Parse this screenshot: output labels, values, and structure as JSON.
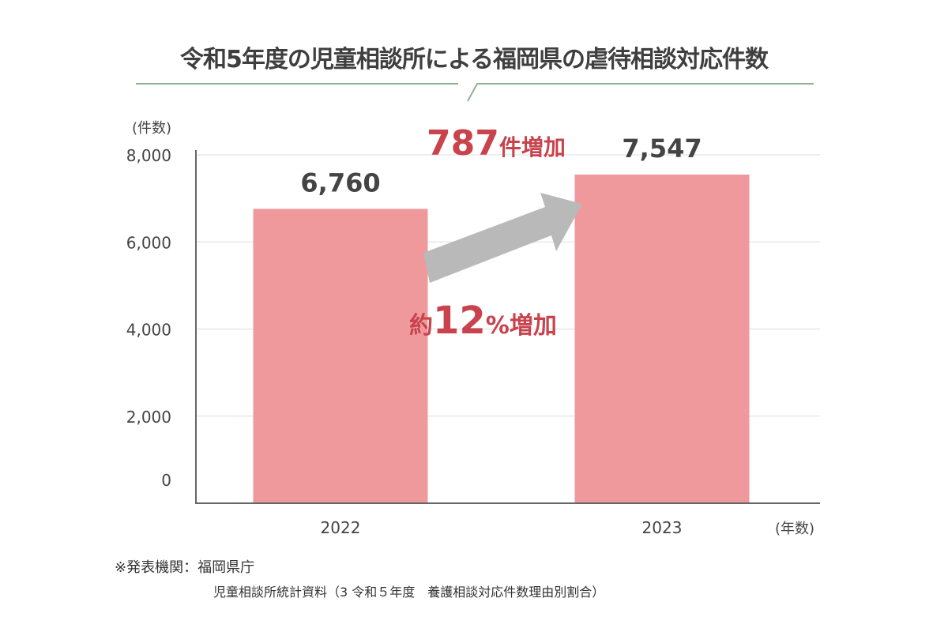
{
  "chart_data": {
    "type": "bar",
    "title": "令和5年度の児童相談所による福岡県の虐待相談対応件数",
    "categories": [
      "2022",
      "2023"
    ],
    "values": [
      6760,
      7547
    ],
    "value_labels": [
      "6,760",
      "7,547"
    ],
    "ylabel": "(件数)",
    "xlabel": "(年数)",
    "ylim": [
      0,
      8000
    ],
    "yticks": [
      0,
      2000,
      4000,
      6000,
      8000
    ],
    "ytick_labels": [
      "0",
      "2,000",
      "4,000",
      "6,000",
      "8,000"
    ],
    "grid": true,
    "annotations": {
      "increase_count_num": "787",
      "increase_count_suffix": "件増加",
      "increase_pct_prefix": "約",
      "increase_pct_num": "12",
      "increase_pct_suffix": "%増加"
    },
    "colors": {
      "bar": "#f0999c",
      "accent": "#c8434c",
      "arrow": "#b9b9b9",
      "title_line": "#8fb38f",
      "grid": "#dddddd"
    }
  },
  "footer": {
    "source_label": "※発表機関：福岡県庁",
    "source_detail": "児童相談所統計資料（3 令和５年度　養護相談対応件数理由別割合）"
  }
}
